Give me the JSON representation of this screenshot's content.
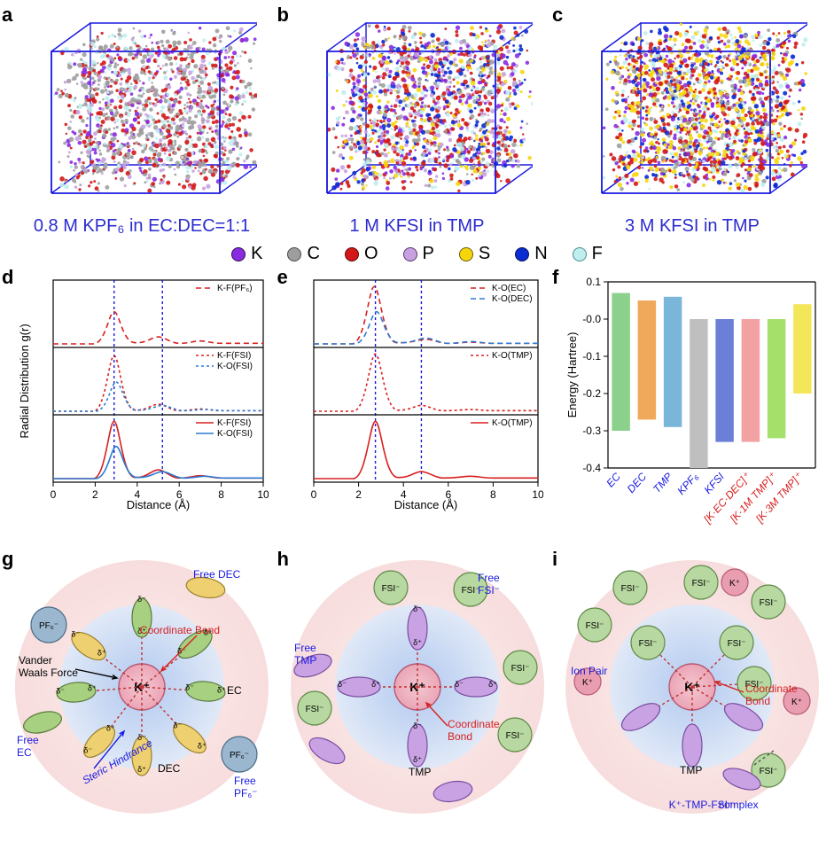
{
  "row1": {
    "panels": {
      "a": {
        "label": "a",
        "caption": "0.8 M KPF₆ in EC:DEC=1:1",
        "density": 0.95
      },
      "b": {
        "label": "b",
        "caption": "1 M KFSI in TMP",
        "density": 1.05
      },
      "c": {
        "label": "c",
        "caption": "3 M KFSI in TMP",
        "density": 1.2
      }
    },
    "caption_color": "#2b2bd0",
    "caption_fontsize": 20,
    "box_edge_color": "#1a1ae0"
  },
  "atom_legend": {
    "items": [
      {
        "label": "K",
        "fill": "#8a2be2",
        "stroke": "#2c0a4f"
      },
      {
        "label": "C",
        "fill": "#9e9e9e",
        "stroke": "#4a4a4a"
      },
      {
        "label": "O",
        "fill": "#d31818",
        "stroke": "#5a0707"
      },
      {
        "label": "P",
        "fill": "#c8a2e0",
        "stroke": "#5a3570"
      },
      {
        "label": "S",
        "fill": "#f6d60b",
        "stroke": "#6a5c05"
      },
      {
        "label": "N",
        "fill": "#0b2bd3",
        "stroke": "#06125a"
      },
      {
        "label": "F",
        "fill": "#bfeeef",
        "stroke": "#4a8b8c"
      }
    ],
    "fontsize": 20
  },
  "panel_d": {
    "label": "d",
    "xlabel": "Distance (Å)",
    "ylabel": "Radial Distribution g(r)",
    "xlim": [
      0,
      10
    ],
    "xtick_step": 2,
    "vlines": [
      2.9,
      5.2
    ],
    "vline_style": {
      "color": "#1a1ae0",
      "dash": "3,3",
      "width": 1.4
    },
    "label_fontsize": 13,
    "tick_fontsize": 12,
    "legend_fontsize": 10,
    "axis_color": "#000000",
    "subpanels": [
      {
        "legend": [
          {
            "label": "K-F(PF₆)",
            "color": "#d82020",
            "dash": "6,4"
          }
        ],
        "curves": [
          {
            "color": "#d82020",
            "dash": "6,4",
            "peak_x": 2.9,
            "peak_h": 0.55,
            "tail": [
              {
                "x": 5.0,
                "h": 0.12
              },
              {
                "x": 7.0,
                "h": 0.05
              }
            ]
          }
        ]
      },
      {
        "legend": [
          {
            "label": "K-F(FSI)",
            "color": "#d82020",
            "dash": "3,3"
          },
          {
            "label": "K-O(FSI)",
            "color": "#2b7bd3",
            "dash": "3,3"
          }
        ],
        "curves": [
          {
            "color": "#d82020",
            "dash": "3,3",
            "peak_x": 2.9,
            "peak_h": 0.95,
            "tail": [
              {
                "x": 5.0,
                "h": 0.12
              },
              {
                "x": 7.0,
                "h": 0.04
              }
            ]
          },
          {
            "color": "#2b7bd3",
            "dash": "3,3",
            "peak_x": 3.0,
            "peak_h": 0.5,
            "tail": [
              {
                "x": 5.2,
                "h": 0.1
              },
              {
                "x": 7.2,
                "h": 0.03
              }
            ]
          }
        ]
      },
      {
        "legend": [
          {
            "label": "K-F(FSI)",
            "color": "#d82020",
            "dash": null
          },
          {
            "label": "K-O(FSI)",
            "color": "#2b7bd3",
            "dash": null
          }
        ],
        "curves": [
          {
            "color": "#d82020",
            "dash": null,
            "peak_x": 2.9,
            "peak_h": 0.98,
            "tail": [
              {
                "x": 5.0,
                "h": 0.15
              },
              {
                "x": 7.0,
                "h": 0.05
              }
            ]
          },
          {
            "color": "#2b7bd3",
            "dash": null,
            "peak_x": 3.0,
            "peak_h": 0.55,
            "tail": [
              {
                "x": 5.2,
                "h": 0.12
              },
              {
                "x": 7.2,
                "h": 0.04
              }
            ]
          }
        ]
      }
    ]
  },
  "panel_e": {
    "label": "e",
    "xlabel": "Distance (Å)",
    "xlim": [
      0,
      10
    ],
    "xtick_step": 2,
    "vlines": [
      2.75,
      4.8
    ],
    "vline_style": {
      "color": "#1a1ae0",
      "dash": "3,3",
      "width": 1.4
    },
    "label_fontsize": 13,
    "tick_fontsize": 12,
    "legend_fontsize": 10,
    "axis_color": "#000000",
    "subpanels": [
      {
        "legend": [
          {
            "label": "K-O(EC)",
            "color": "#d82020",
            "dash": "6,4"
          },
          {
            "label": "K-O(DEC)",
            "color": "#2b7bd3",
            "dash": "6,4"
          }
        ],
        "curves": [
          {
            "color": "#d82020",
            "dash": "6,4",
            "peak_x": 2.7,
            "peak_h": 0.98,
            "tail": [
              {
                "x": 5.0,
                "h": 0.08
              },
              {
                "x": 7.0,
                "h": 0.03
              }
            ]
          },
          {
            "color": "#2b7bd3",
            "dash": "6,4",
            "peak_x": 2.8,
            "peak_h": 0.55,
            "tail": [
              {
                "x": 5.0,
                "h": 0.1
              },
              {
                "x": 7.0,
                "h": 0.04
              }
            ]
          }
        ]
      },
      {
        "legend": [
          {
            "label": "K-O(TMP)",
            "color": "#d82020",
            "dash": "3,3"
          }
        ],
        "curves": [
          {
            "color": "#d82020",
            "dash": "3,3",
            "peak_x": 2.75,
            "peak_h": 0.98,
            "tail": [
              {
                "x": 4.8,
                "h": 0.1
              },
              {
                "x": 7.0,
                "h": 0.03
              }
            ]
          }
        ]
      },
      {
        "legend": [
          {
            "label": "K-O(TMP)",
            "color": "#d82020",
            "dash": null
          }
        ],
        "curves": [
          {
            "color": "#d82020",
            "dash": null,
            "peak_x": 2.75,
            "peak_h": 0.98,
            "tail": [
              {
                "x": 4.8,
                "h": 0.12
              },
              {
                "x": 7.0,
                "h": 0.04
              }
            ]
          }
        ]
      }
    ]
  },
  "panel_f": {
    "label": "f",
    "ylabel": "Energy (Hartree)",
    "ylim": [
      -0.4,
      0.1
    ],
    "ytick_step": 0.1,
    "label_fontsize": 13,
    "tick_fontsize": 12,
    "axis_color": "#000000",
    "bar_width": 0.7,
    "bars": [
      {
        "label": "EC",
        "low": -0.3,
        "high": 0.07,
        "fill": "#8bd08b",
        "label_color": "#1a1ae0"
      },
      {
        "label": "DEC",
        "low": -0.27,
        "high": 0.05,
        "fill": "#f0a95a",
        "label_color": "#1a1ae0"
      },
      {
        "label": "TMP",
        "low": -0.29,
        "high": 0.06,
        "fill": "#79b6da",
        "label_color": "#1a1ae0"
      },
      {
        "label": "KPF₆",
        "low": -0.4,
        "high": 0.0,
        "fill": "#bfbfbf",
        "label_color": "#1a1ae0"
      },
      {
        "label": "KFSI",
        "low": -0.33,
        "high": 0.0,
        "fill": "#6b7fd6",
        "label_color": "#1a1ae0"
      },
      {
        "label": "[K·EC·DEC]⁺",
        "low": -0.33,
        "high": 0.0,
        "fill": "#f2a2a2",
        "label_color": "#d82020"
      },
      {
        "label": "[K·1M TMP]⁺",
        "low": -0.32,
        "high": 0.0,
        "fill": "#a5e06b",
        "label_color": "#d82020"
      },
      {
        "label": "[K·3M TMP]⁺",
        "low": -0.2,
        "high": 0.04,
        "fill": "#f4e659",
        "label_color": "#d82020"
      }
    ]
  },
  "row3": {
    "outer_fill": "#f6dada",
    "inner_fill_center": "#a9c5f0",
    "inner_fill_edge": "#e8f1fb",
    "center_ion": {
      "label": "K⁺",
      "fill": "#e99db0",
      "stroke": "#b65a72",
      "r": 26
    },
    "annotation_color": "#000000",
    "blue_text": "#1a1ae0",
    "red_text": "#d82020",
    "label_fontsize": 12
  },
  "panel_g": {
    "label": "g",
    "annotations": [
      {
        "text": "Free DEC",
        "color": "#1a1ae0"
      },
      {
        "text": "Vander Waals Force",
        "color": "#000000"
      },
      {
        "text": "Coordinate Bond",
        "color": "#d82020"
      },
      {
        "text": "EC",
        "color": "#000000"
      },
      {
        "text": "DEC",
        "color": "#000000"
      },
      {
        "text": "Free EC",
        "color": "#1a1ae0"
      },
      {
        "text": "Free PF₆⁻",
        "color": "#1a1ae0"
      },
      {
        "text": "Steric Hindrance",
        "color": "#1a1ae0"
      },
      {
        "text": "PF₆⁻",
        "color": "#000000"
      }
    ],
    "ec_color": {
      "fill": "#a7d080",
      "stroke": "#5a7a3c"
    },
    "dec_color": {
      "fill": "#efd070",
      "stroke": "#9a8030"
    },
    "pf6_color": {
      "fill": "#9ab7cf",
      "stroke": "#4a6b86"
    }
  },
  "panel_h": {
    "label": "h",
    "annotations": [
      {
        "text": "Free FSI⁻",
        "color": "#1a1ae0"
      },
      {
        "text": "Free TMP",
        "color": "#1a1ae0"
      },
      {
        "text": "Coordinate Bond",
        "color": "#d82020"
      },
      {
        "text": "FSI⁻",
        "color": "#000000"
      },
      {
        "text": "TMP",
        "color": "#000000"
      }
    ],
    "tmp_color": {
      "fill": "#c9a2e4",
      "stroke": "#7a4da0"
    },
    "fsi_color": {
      "fill": "#b7d8a0",
      "stroke": "#5e8a46"
    }
  },
  "panel_i": {
    "label": "i",
    "annotations": [
      {
        "text": "Ion Pair",
        "color": "#1a1ae0"
      },
      {
        "text": "Coordinate Bond",
        "color": "#d82020"
      },
      {
        "text": "FSI⁻",
        "color": "#000000"
      },
      {
        "text": "K⁺",
        "color": "#000000"
      },
      {
        "text": "TMP",
        "color": "#000000"
      },
      {
        "text": "K⁺-TMP-FSI⁻ complex",
        "color": "#1a1ae0"
      }
    ],
    "tmp_color": {
      "fill": "#c9a2e4",
      "stroke": "#7a4da0"
    },
    "fsi_color": {
      "fill": "#b7d8a0",
      "stroke": "#5e8a46"
    },
    "k_color": {
      "fill": "#e99db0",
      "stroke": "#b65a72"
    }
  }
}
